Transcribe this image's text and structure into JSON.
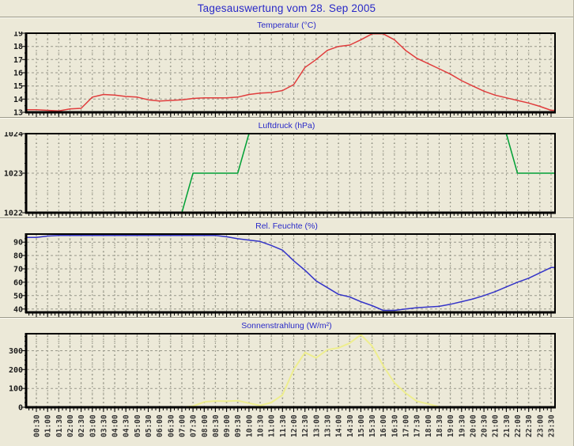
{
  "header": {
    "title": "Tagesauswertung vom 28. Sep 2005"
  },
  "colors": {
    "page_bg": "#ece9d8",
    "plot_bg": "#ece9d8",
    "grid": "#98988a",
    "minor_grid": "#a3a392",
    "axis": "#000000",
    "title_blue": "#2929c8",
    "y_label": "#1a1a1a",
    "x_label": "#333333",
    "temperature_line": "#e03c3c",
    "pressure_line": "#00a035",
    "humidity_line": "#3434c8",
    "solar_line": "#eeee8e"
  },
  "x_labels": [
    "00:30",
    "01:00",
    "01:30",
    "02:00",
    "02:30",
    "03:00",
    "03:30",
    "04:00",
    "04:30",
    "05:00",
    "05:30",
    "06:00",
    "06:30",
    "07:00",
    "07:30",
    "08:00",
    "08:30",
    "09:00",
    "09:30",
    "10:00",
    "10:30",
    "11:00",
    "11:30",
    "12:00",
    "12:30",
    "13:00",
    "13:30",
    "14:00",
    "14:30",
    "15:00",
    "15:30",
    "16:00",
    "16:30",
    "17:00",
    "17:30",
    "18:00",
    "18:30",
    "19:00",
    "19:30",
    "20:00",
    "20:30",
    "21:00",
    "21:30",
    "22:00",
    "22:30",
    "23:00",
    "23:30"
  ],
  "chart_data": [
    {
      "type": "line",
      "title": "Temperatur (°C)",
      "ylabel": "°C",
      "color": "#e03c3c",
      "ylim": [
        13,
        19
      ],
      "yticks": [
        13,
        14,
        15,
        16,
        17,
        18,
        19
      ],
      "y_minor_step": 0.5,
      "categories_ref": "x_labels",
      "values": [
        13.2,
        13.15,
        13.1,
        13.25,
        13.3,
        14.15,
        14.35,
        14.3,
        14.2,
        14.15,
        13.95,
        13.85,
        13.9,
        13.95,
        14.05,
        14.1,
        14.1,
        14.1,
        14.15,
        14.35,
        14.45,
        14.5,
        14.65,
        15.1,
        16.4,
        17.0,
        17.7,
        18.0,
        18.1,
        18.5,
        18.95,
        18.95,
        18.5,
        17.7,
        17.1,
        16.7,
        16.3,
        15.9,
        15.4,
        15.0,
        14.6,
        14.3,
        14.1,
        13.9,
        13.7,
        13.45,
        13.15
      ]
    },
    {
      "type": "line",
      "title": "Luftdruck (hPa)",
      "ylabel": "hPa",
      "color": "#00a035",
      "ylim": [
        1022,
        1024
      ],
      "yticks": [
        1022,
        1023,
        1024
      ],
      "y_minor_step": 0.25,
      "categories_ref": "x_labels",
      "values": [
        1022,
        1022,
        1022,
        1022,
        1022,
        1022,
        1022,
        1022,
        1022,
        1022,
        1022,
        1022,
        1022,
        1022,
        1023,
        1023,
        1023,
        1023,
        1023,
        1024,
        1024,
        1024,
        1024,
        1024,
        1024,
        1024,
        1024,
        1024,
        1024,
        1024,
        1024,
        1024,
        1024,
        1024,
        1024,
        1024,
        1024,
        1024,
        1024,
        1024,
        1024,
        1024,
        1024,
        1023,
        1023,
        1023,
        1023
      ]
    },
    {
      "type": "line",
      "title": "Rel. Feuchte (%)",
      "ylabel": "%",
      "color": "#3434c8",
      "ylim": [
        37.5,
        96
      ],
      "yticks": [
        40,
        50,
        60,
        70,
        80,
        90
      ],
      "y_minor_step": 5,
      "categories_ref": "x_labels",
      "values": [
        93.5,
        94.5,
        95,
        95,
        95,
        95,
        95,
        95,
        95,
        95,
        95,
        95,
        95,
        95,
        95,
        95,
        95,
        94,
        92.5,
        91.5,
        90.5,
        87.5,
        84,
        76,
        69,
        61,
        56,
        51,
        49,
        45.5,
        42.5,
        39,
        39,
        40,
        41,
        41.5,
        42,
        43.5,
        45.5,
        47.5,
        50,
        53,
        56.5,
        60,
        63,
        67,
        71
      ]
    },
    {
      "type": "line",
      "title": "Sonnenstrahlung (W/m²)",
      "ylabel": "W/m²",
      "color": "#eeee8e",
      "ylim": [
        0,
        390
      ],
      "yticks": [
        0,
        100,
        200,
        300
      ],
      "y_minor_step": 25,
      "categories_ref": "x_labels",
      "values": [
        0,
        0,
        0,
        0,
        0,
        0,
        0,
        0,
        0,
        0,
        0,
        0,
        0,
        0,
        6,
        28,
        33,
        32,
        35,
        22,
        9,
        25,
        65,
        200,
        290,
        262,
        305,
        315,
        340,
        385,
        325,
        220,
        130,
        75,
        32,
        18,
        2,
        0,
        0,
        0,
        0,
        0,
        0,
        0,
        0,
        0,
        0
      ]
    }
  ]
}
